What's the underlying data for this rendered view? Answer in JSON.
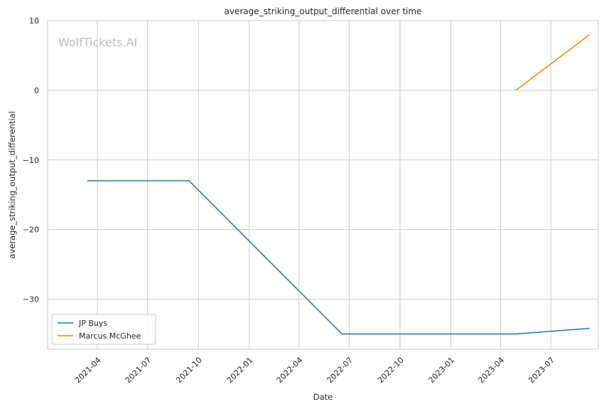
{
  "chart_data": {
    "type": "line",
    "title": "average_striking_output_differential over time",
    "xlabel": "Date",
    "ylabel": "average_striking_output_differential",
    "watermark": "WolfTickets.AI",
    "x_ticks": [
      "2021-04",
      "2021-07",
      "2021-10",
      "2022-01",
      "2022-04",
      "2022-07",
      "2022-10",
      "2023-01",
      "2023-04",
      "2023-07"
    ],
    "x_range": [
      "2021-01-01",
      "2023-09-25"
    ],
    "y_ticks": [
      10,
      0,
      -10,
      -20,
      -30
    ],
    "y_tick_labels": [
      "10",
      "0",
      "−10",
      "−20",
      "−30"
    ],
    "ylim": [
      -37.2,
      10
    ],
    "grid": true,
    "legend_position": "lower-left",
    "series": [
      {
        "name": "JP Buys",
        "color": "#1f77b4",
        "points": [
          {
            "x": "2021-03-14",
            "y": -13
          },
          {
            "x": "2021-09-14",
            "y": -13
          },
          {
            "x": "2022-06-18",
            "y": -35
          },
          {
            "x": "2023-04-29",
            "y": -35
          },
          {
            "x": "2023-09-09",
            "y": -34.2
          }
        ]
      },
      {
        "name": "Marcus McGhee",
        "color": "#ff7f0e",
        "points": [
          {
            "x": "2023-04-29",
            "y": 0
          },
          {
            "x": "2023-09-09",
            "y": 8
          }
        ]
      }
    ]
  }
}
